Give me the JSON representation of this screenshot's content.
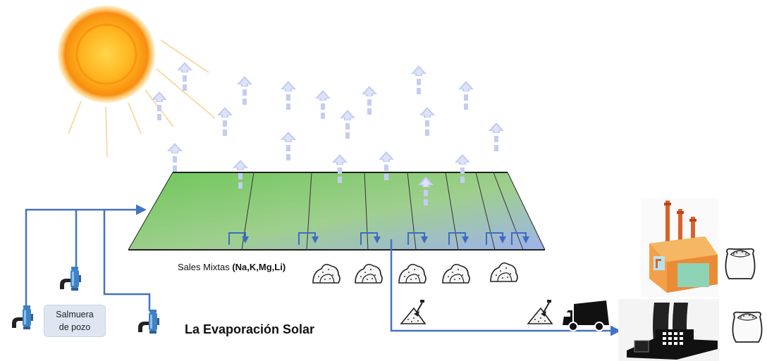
{
  "diagram": {
    "title": "La Evaporación Solar",
    "sales_prefix": "Sales Mixtas",
    "sales_elements": "(Na,K,Mg,Li)",
    "brine_line1": "Salmuera",
    "brine_line2": "de pozo"
  },
  "colors": {
    "pipe": "#4472c4",
    "vapor_arrow": "#b4bfee",
    "pond_green": "#7fcf6a",
    "pond_blue": "#9fb3e8",
    "sun": "#f7a21b",
    "factory_orange": "#f39c38",
    "plant_black": "#1d1d1d"
  },
  "icons": [
    "sun-icon",
    "vapor-arrow-icon",
    "well-pump-icon",
    "salt-pile-icon",
    "shovel-icon",
    "dump-truck-icon",
    "factory-icon",
    "power-plant-icon",
    "salt-sack-icon"
  ]
}
